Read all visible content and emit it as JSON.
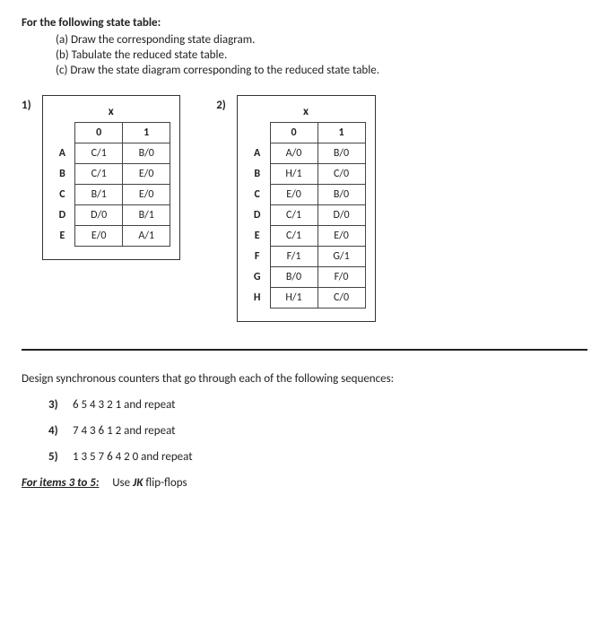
{
  "header": {
    "title": "For the following state table:",
    "a": "(a)  Draw the corresponding state diagram.",
    "b": "(b)  Tabulate the reduced state table.",
    "c": "(c)  Draw the state diagram corresponding to the reduced state table."
  },
  "table1": {
    "num": "1)",
    "input_label": "x",
    "cols": [
      "0",
      "1"
    ],
    "rows": [
      "A",
      "B",
      "C",
      "D",
      "E"
    ],
    "cells": [
      [
        "C/1",
        "B/0"
      ],
      [
        "C/1",
        "E/0"
      ],
      [
        "B/1",
        "E/0"
      ],
      [
        "D/0",
        "B/1"
      ],
      [
        "E/0",
        "A/1"
      ]
    ],
    "border_color": "#444",
    "cell_fontsize": 12
  },
  "table2": {
    "num": "2)",
    "input_label": "x",
    "cols": [
      "0",
      "1"
    ],
    "rows": [
      "A",
      "B",
      "C",
      "D",
      "E",
      "F",
      "G",
      "H"
    ],
    "cells": [
      [
        "A/0",
        "B/0"
      ],
      [
        "H/1",
        "C/0"
      ],
      [
        "E/0",
        "B/0"
      ],
      [
        "C/1",
        "D/0"
      ],
      [
        "C/1",
        "E/0"
      ],
      [
        "F/1",
        "G/1"
      ],
      [
        "B/0",
        "F/0"
      ],
      [
        "H/1",
        "C/0"
      ]
    ],
    "border_color": "#444",
    "cell_fontsize": 12
  },
  "section2": {
    "intro": "Design synchronous counters that go through each of the following sequences:",
    "items": [
      {
        "num": "3)",
        "seq": "6  5  4  3  2  1  and repeat"
      },
      {
        "num": "4)",
        "seq": "7  4  3  6  1  2 and repeat"
      },
      {
        "num": "5)",
        "seq": "1  3  5  7  6  4  2  0 and repeat"
      }
    ],
    "footer_label": "For items 3 to 5:",
    "footer_text1": "Use ",
    "footer_jk": "JK",
    "footer_text2": " flip-flops"
  }
}
